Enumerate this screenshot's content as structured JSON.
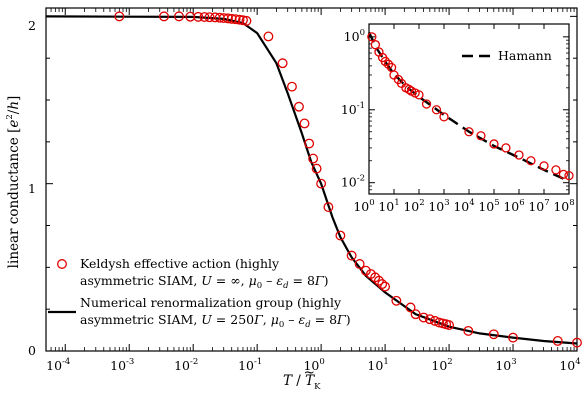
{
  "colors": {
    "marker": "#e00000",
    "line": "#000000"
  },
  "main": {
    "xlabel_T": "T",
    "xlabel_rest": " / ",
    "xlabel_Tk": "T",
    "xlabel_tilde": "~",
    "xlabel_sub": "K",
    "ylabel_pre": "linear conductance [",
    "ylabel_e": "e",
    "ylabel_2": "2",
    "ylabel_slash": "/",
    "ylabel_h": "h",
    "ylabel_post": "]",
    "xtick_base": "10",
    "xtick_exps": [
      "-4",
      "-3",
      "-2",
      "-1",
      "0",
      "1",
      "2",
      "3",
      "4"
    ],
    "yticks": [
      "0",
      "1",
      "2"
    ],
    "legend": {
      "keldysh_line1": "Keldysh effective action (highly",
      "keldysh_line2_pre": "asymmetric SIAM, ",
      "keldysh_U": "U",
      "keldysh_val": " = ∞, ",
      "keldysh_mu": "μ",
      "keldysh_mu_sub": "0",
      "keldysh_minus": " – ",
      "keldysh_eps": "ε",
      "keldysh_eps_sub": "d",
      "keldysh_eq": " = 8",
      "keldysh_gamma": "Γ",
      "keldysh_close": ")",
      "nrg_line1": "Numerical renormalization group (highly",
      "nrg_line2_pre": "asymmetric SIAM, ",
      "nrg_U": "U",
      "nrg_val": " = 250",
      "nrg_gamma1": "Γ",
      "nrg_comma": ", ",
      "nrg_mu": "μ",
      "nrg_mu_sub": "0",
      "nrg_minus": " – ",
      "nrg_eps": "ε",
      "nrg_eps_sub": "d",
      "nrg_eq": " = 8",
      "nrg_gamma2": "Γ",
      "nrg_close": ")"
    }
  },
  "inset": {
    "xtick_base": "10",
    "xtick_exps": [
      "0",
      "1",
      "2",
      "3",
      "4",
      "5",
      "6",
      "7",
      "8"
    ],
    "ytick_base": "10",
    "ytick_exps": [
      "0",
      "-1",
      "-2"
    ],
    "legend_hamann": "Hamann"
  },
  "chart_data": [
    {
      "type": "line",
      "xscale": "log",
      "xlim": [
        5e-05,
        10000
      ],
      "ylim": [
        0,
        2.05
      ],
      "xlabel": "T / T̃K",
      "ylabel": "linear conductance [e²/h]",
      "grid": false,
      "legend_placement": "lower-left",
      "series": [
        {
          "name": "Keldysh effective action (highly asymmetric SIAM, U = ∞, μ0 – εd = 8Γ)",
          "style": "markers",
          "x": [
            0.0007,
            0.0035,
            0.006,
            0.009,
            0.012,
            0.015,
            0.018,
            0.022,
            0.026,
            0.03,
            0.035,
            0.04,
            0.046,
            0.053,
            0.06,
            0.068,
            0.15,
            0.25,
            0.35,
            0.45,
            0.55,
            0.65,
            0.75,
            0.85,
            1.0,
            1.3,
            2.0,
            3.0,
            4.0,
            5.0,
            6.0,
            7.0,
            8.0,
            9.0,
            10,
            15,
            25,
            30,
            40,
            50,
            60,
            70,
            80,
            90,
            100,
            200,
            500,
            1000,
            5000,
            10000
          ],
          "y": [
            2.0,
            2.0,
            2.0,
            1.998,
            1.997,
            1.996,
            1.995,
            1.994,
            1.992,
            1.99,
            1.988,
            1.985,
            1.983,
            1.98,
            1.977,
            1.973,
            1.88,
            1.72,
            1.58,
            1.46,
            1.36,
            1.24,
            1.15,
            1.09,
            1.0,
            0.86,
            0.69,
            0.57,
            0.52,
            0.48,
            0.46,
            0.44,
            0.42,
            0.4,
            0.385,
            0.3,
            0.26,
            0.22,
            0.2,
            0.19,
            0.18,
            0.17,
            0.165,
            0.16,
            0.155,
            0.12,
            0.1,
            0.08,
            0.06,
            0.05
          ]
        },
        {
          "name": "Numerical renormalization group (highly asymmetric SIAM, U = 250Γ, μ0 – εd = 8Γ)",
          "style": "solid",
          "x": [
            5e-05,
            0.01,
            0.03,
            0.06,
            0.1,
            0.2,
            0.3,
            0.5,
            0.7,
            1.0,
            1.5,
            2.0,
            3.0,
            5.0,
            10,
            30,
            100,
            300,
            1000,
            3000,
            10000
          ],
          "y": [
            2.0,
            1.997,
            1.985,
            1.96,
            1.9,
            1.72,
            1.54,
            1.3,
            1.13,
            1.0,
            0.8,
            0.68,
            0.56,
            0.45,
            0.35,
            0.22,
            0.145,
            0.105,
            0.08,
            0.06,
            0.045
          ]
        }
      ]
    },
    {
      "type": "line",
      "xscale": "log",
      "yscale": "log",
      "xlim": [
        1,
        100000000
      ],
      "ylim": [
        0.007,
        1.5
      ],
      "grid": false,
      "legend_placement": "top-right",
      "series": [
        {
          "name": "",
          "style": "markers",
          "x": [
            1.3,
            1.8,
            2.5,
            3.5,
            4.5,
            6,
            8,
            10,
            15,
            20,
            30,
            40,
            50,
            70,
            100,
            200,
            500,
            1000,
            10000,
            30000,
            100000,
            300000,
            1000000,
            3000000,
            10000000,
            30000000,
            60000000,
            100000000
          ],
          "y": [
            1.0,
            0.78,
            0.62,
            0.52,
            0.46,
            0.42,
            0.38,
            0.3,
            0.26,
            0.23,
            0.2,
            0.19,
            0.18,
            0.17,
            0.16,
            0.12,
            0.1,
            0.08,
            0.05,
            0.044,
            0.034,
            0.03,
            0.024,
            0.02,
            0.017,
            0.015,
            0.013,
            0.0125
          ]
        },
        {
          "name": "Hamann",
          "style": "dashed",
          "x": [
            1,
            2,
            5,
            10,
            30,
            100,
            300,
            1000,
            10000,
            100000,
            1000000,
            10000000,
            100000000
          ],
          "y": [
            1.15,
            0.7,
            0.43,
            0.31,
            0.21,
            0.15,
            0.115,
            0.085,
            0.05,
            0.032,
            0.022,
            0.015,
            0.0105
          ]
        }
      ]
    }
  ]
}
